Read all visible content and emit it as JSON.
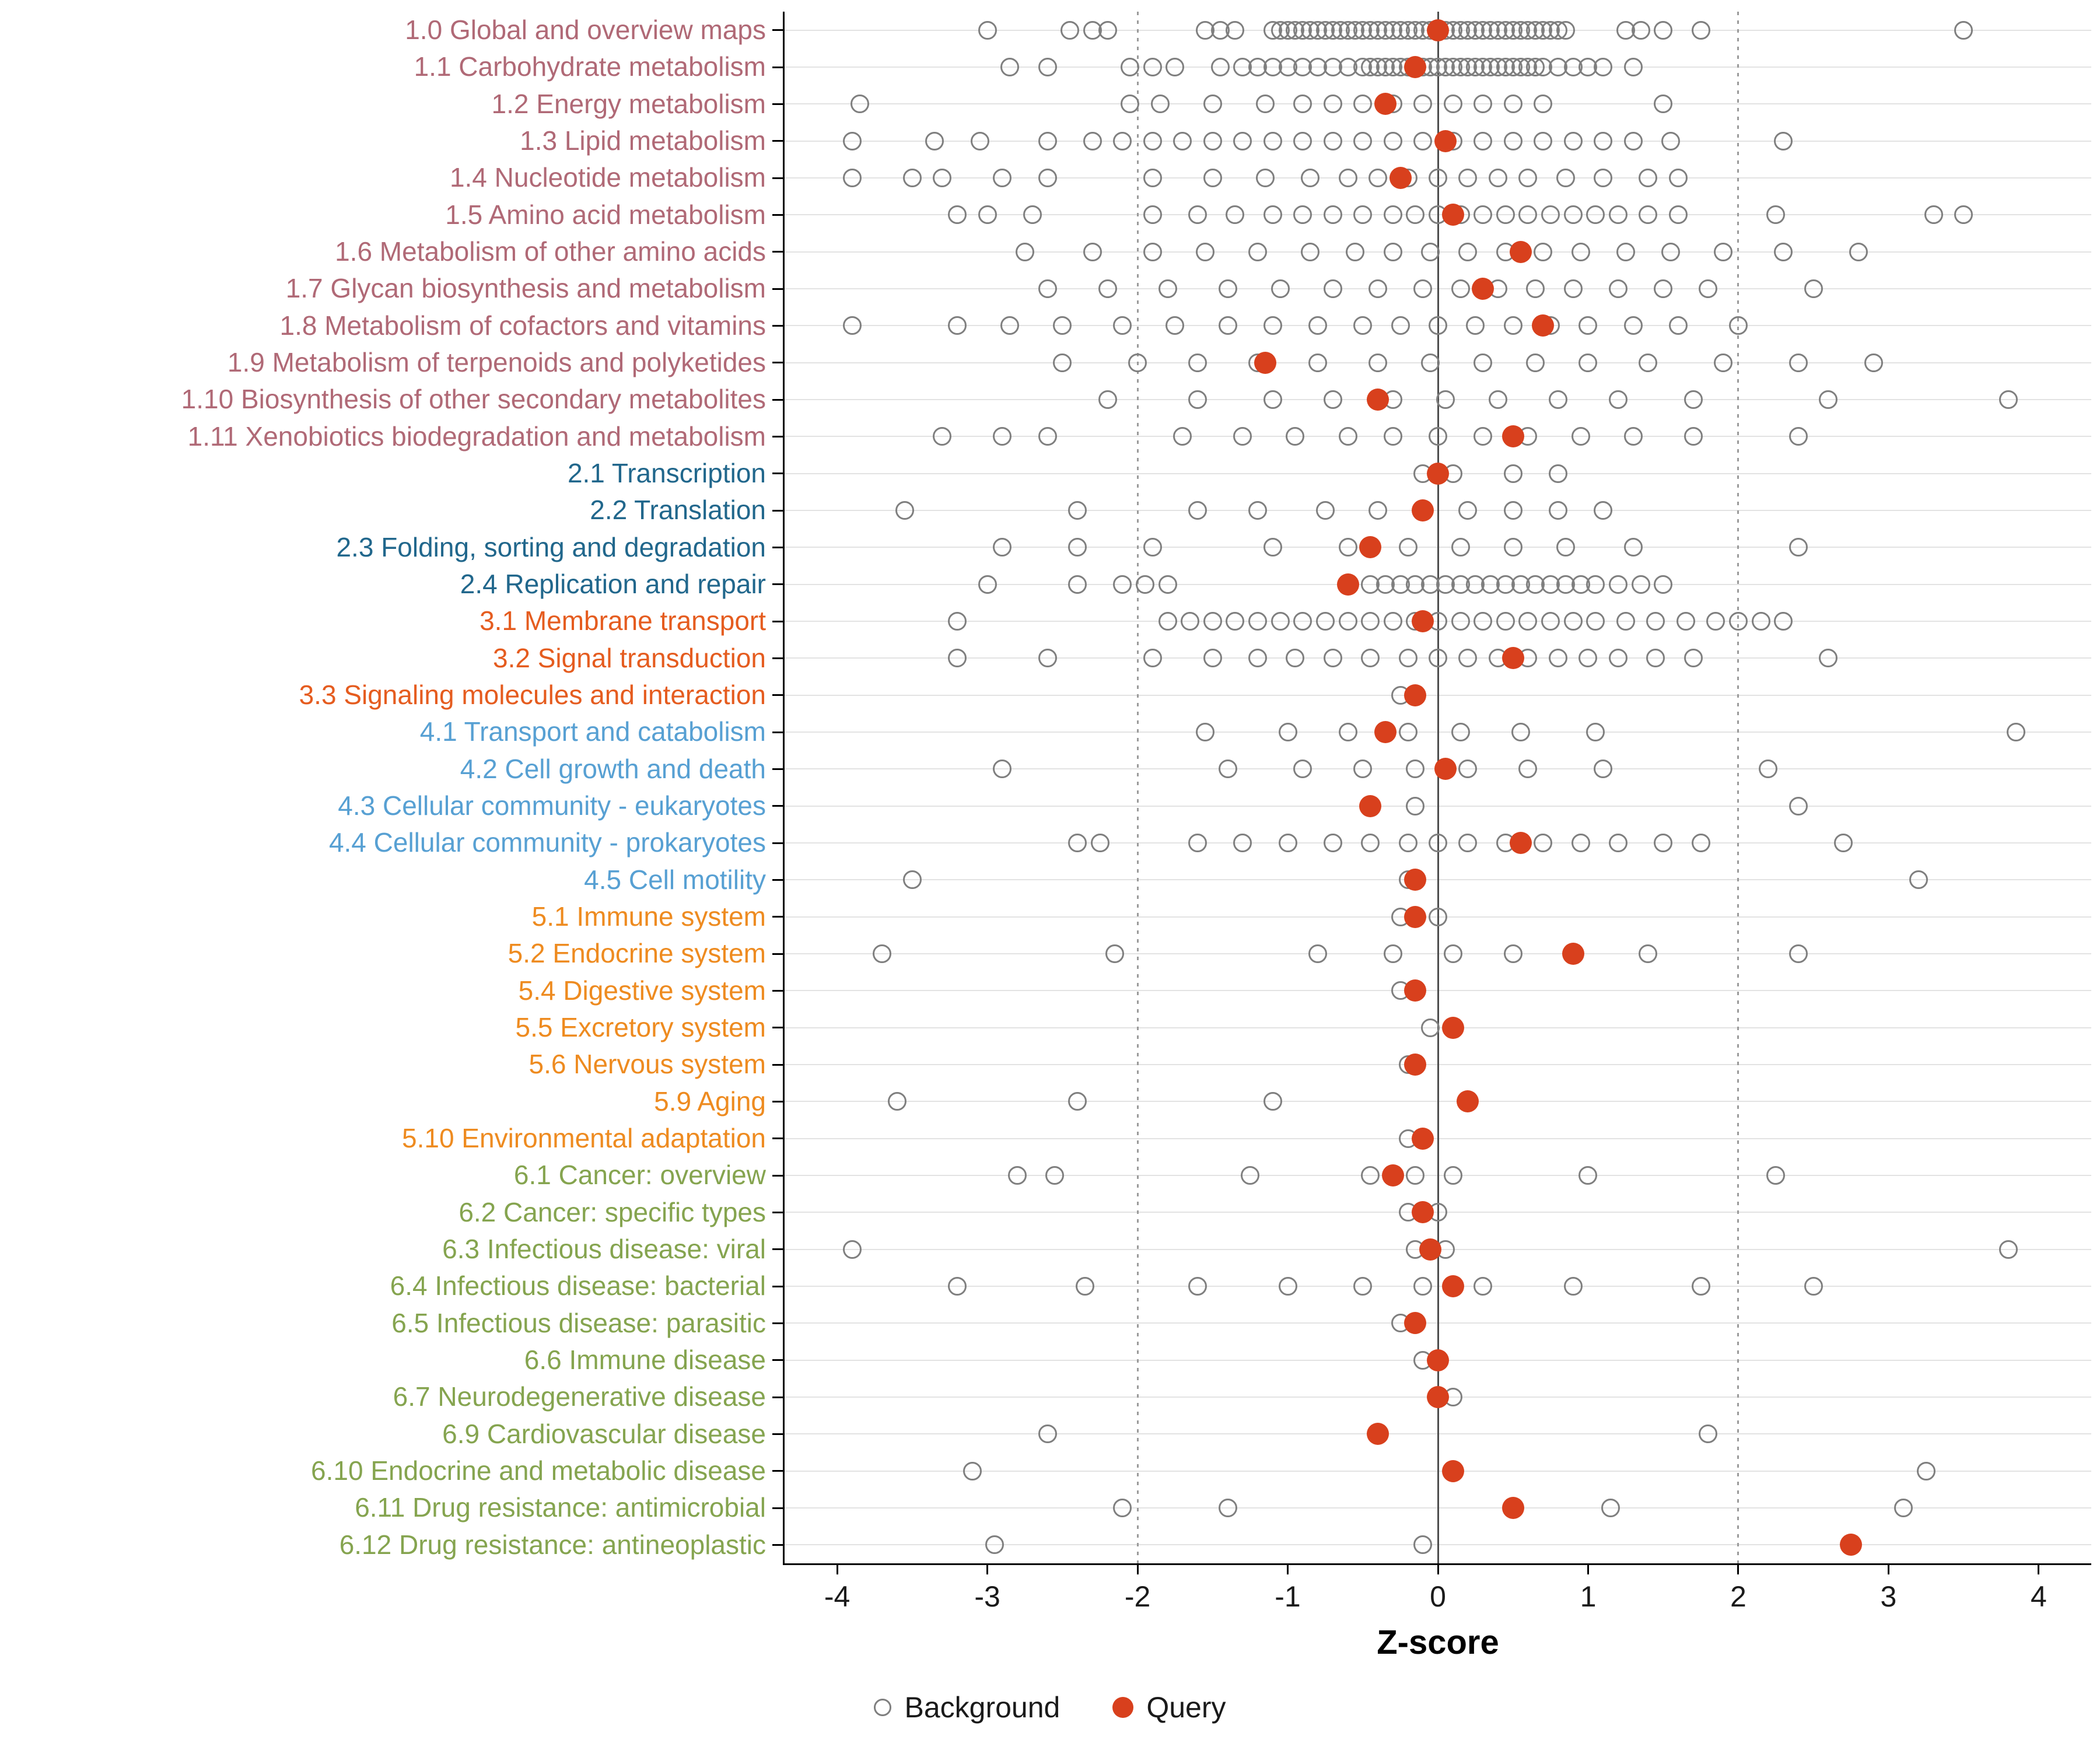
{
  "chart_data": {
    "type": "scatter",
    "title": "",
    "xlabel": "Z-score",
    "xlim": [
      -4.35,
      4.35
    ],
    "x_ticks": [
      -4,
      -3,
      -2,
      -1,
      0,
      1,
      2,
      3,
      4
    ],
    "reference_lines": {
      "solid": [
        0
      ],
      "dotted": [
        -2,
        2
      ]
    },
    "grid": "horizontal-major",
    "legend_position": "bottom",
    "legend": [
      {
        "label": "Background",
        "type": "open"
      },
      {
        "label": "Query",
        "type": "filled"
      }
    ],
    "colors": {
      "background_dot": "#7f7f7f",
      "query_dot": "#d8401d",
      "zero_line": "#4d4d4d",
      "threshold_line": "#9b9b9b",
      "gridline": "#e3e3e3",
      "group_colors": {
        "1": "#b06976",
        "2": "#21678c",
        "3": "#e55c1f",
        "4": "#57a0d3",
        "5": "#ee8b20",
        "6": "#85a44f"
      }
    },
    "categories": [
      {
        "label": "1.0 Global and overview maps",
        "group": "1",
        "query": 0.0,
        "background": [
          -3.0,
          -2.45,
          -2.3,
          -2.2,
          -1.55,
          -1.45,
          -1.35,
          -1.1,
          -1.05,
          -1.0,
          -0.95,
          -0.9,
          -0.85,
          -0.8,
          -0.75,
          -0.7,
          -0.65,
          -0.6,
          -0.55,
          -0.5,
          -0.45,
          -0.4,
          -0.35,
          -0.3,
          -0.25,
          -0.2,
          -0.15,
          -0.1,
          -0.05,
          0.0,
          0.05,
          0.1,
          0.15,
          0.2,
          0.25,
          0.3,
          0.35,
          0.4,
          0.45,
          0.5,
          0.55,
          0.6,
          0.65,
          0.7,
          0.75,
          0.8,
          0.85,
          1.25,
          1.35,
          1.5,
          1.75,
          3.5
        ]
      },
      {
        "label": "1.1 Carbohydrate metabolism",
        "group": "1",
        "query": -0.15,
        "background": [
          -2.85,
          -2.6,
          -2.05,
          -1.9,
          -1.75,
          -1.45,
          -1.3,
          -1.2,
          -1.1,
          -1.0,
          -0.9,
          -0.8,
          -0.7,
          -0.6,
          -0.5,
          -0.45,
          -0.4,
          -0.35,
          -0.3,
          -0.25,
          -0.2,
          -0.15,
          -0.1,
          -0.05,
          0.0,
          0.05,
          0.1,
          0.15,
          0.2,
          0.25,
          0.3,
          0.35,
          0.4,
          0.45,
          0.5,
          0.55,
          0.6,
          0.65,
          0.7,
          0.8,
          0.9,
          1.0,
          1.1,
          1.3
        ]
      },
      {
        "label": "1.2 Energy metabolism",
        "group": "1",
        "query": -0.35,
        "background": [
          -3.85,
          -2.05,
          -1.85,
          -1.5,
          -1.15,
          -0.9,
          -0.7,
          -0.5,
          -0.3,
          -0.1,
          0.1,
          0.3,
          0.5,
          0.7,
          1.5
        ]
      },
      {
        "label": "1.3 Lipid metabolism",
        "group": "1",
        "query": 0.05,
        "background": [
          -3.9,
          -3.35,
          -3.05,
          -2.6,
          -2.3,
          -2.1,
          -1.9,
          -1.7,
          -1.5,
          -1.3,
          -1.1,
          -0.9,
          -0.7,
          -0.5,
          -0.3,
          -0.1,
          0.1,
          0.3,
          0.5,
          0.7,
          0.9,
          1.1,
          1.3,
          1.55,
          2.3
        ]
      },
      {
        "label": "1.4 Nucleotide metabolism",
        "group": "1",
        "query": -0.25,
        "background": [
          -3.9,
          -3.5,
          -3.3,
          -2.9,
          -2.6,
          -1.9,
          -1.5,
          -1.15,
          -0.85,
          -0.6,
          -0.4,
          -0.2,
          0.0,
          0.2,
          0.4,
          0.6,
          0.85,
          1.1,
          1.4,
          1.6
        ]
      },
      {
        "label": "1.5 Amino acid metabolism",
        "group": "1",
        "query": 0.1,
        "background": [
          -3.2,
          -3.0,
          -2.7,
          -1.9,
          -1.6,
          -1.35,
          -1.1,
          -0.9,
          -0.7,
          -0.5,
          -0.3,
          -0.15,
          0.0,
          0.15,
          0.3,
          0.45,
          0.6,
          0.75,
          0.9,
          1.05,
          1.2,
          1.4,
          1.6,
          2.25,
          3.3,
          3.5
        ]
      },
      {
        "label": "1.6 Metabolism of other amino acids",
        "group": "1",
        "query": 0.55,
        "background": [
          -2.75,
          -2.3,
          -1.9,
          -1.55,
          -1.2,
          -0.85,
          -0.55,
          -0.3,
          -0.05,
          0.2,
          0.45,
          0.7,
          0.95,
          1.25,
          1.55,
          1.9,
          2.3,
          2.8
        ]
      },
      {
        "label": "1.7 Glycan biosynthesis and metabolism",
        "group": "1",
        "query": 0.3,
        "background": [
          -2.6,
          -2.2,
          -1.8,
          -1.4,
          -1.05,
          -0.7,
          -0.4,
          -0.1,
          0.15,
          0.4,
          0.65,
          0.9,
          1.2,
          1.5,
          1.8,
          2.5
        ]
      },
      {
        "label": "1.8 Metabolism of cofactors and vitamins",
        "group": "1",
        "query": 0.7,
        "background": [
          -3.9,
          -3.2,
          -2.85,
          -2.5,
          -2.1,
          -1.75,
          -1.4,
          -1.1,
          -0.8,
          -0.5,
          -0.25,
          0.0,
          0.25,
          0.5,
          0.75,
          1.0,
          1.3,
          1.6,
          2.0
        ]
      },
      {
        "label": "1.9 Metabolism of terpenoids and polyketides",
        "group": "1",
        "query": -1.15,
        "background": [
          -2.5,
          -2.0,
          -1.6,
          -1.2,
          -0.8,
          -0.4,
          -0.05,
          0.3,
          0.65,
          1.0,
          1.4,
          1.9,
          2.4,
          2.9
        ]
      },
      {
        "label": "1.10 Biosynthesis of other secondary metabolites",
        "group": "1",
        "query": -0.4,
        "background": [
          -2.2,
          -1.6,
          -1.1,
          -0.7,
          -0.3,
          0.05,
          0.4,
          0.8,
          1.2,
          1.7,
          2.6,
          3.8
        ]
      },
      {
        "label": "1.11 Xenobiotics biodegradation and metabolism",
        "group": "1",
        "query": 0.5,
        "background": [
          -3.3,
          -2.9,
          -2.6,
          -1.7,
          -1.3,
          -0.95,
          -0.6,
          -0.3,
          0.0,
          0.3,
          0.6,
          0.95,
          1.3,
          1.7,
          2.4
        ]
      },
      {
        "label": "2.1 Transcription",
        "group": "2",
        "query": 0.0,
        "background": [
          -0.1,
          0.1,
          0.5,
          0.8
        ]
      },
      {
        "label": "2.2 Translation",
        "group": "2",
        "query": -0.1,
        "background": [
          -3.55,
          -2.4,
          -1.6,
          -1.2,
          -0.75,
          -0.4,
          -0.1,
          0.2,
          0.5,
          0.8,
          1.1
        ]
      },
      {
        "label": "2.3 Folding, sorting and degradation",
        "group": "2",
        "query": -0.45,
        "background": [
          -2.9,
          -2.4,
          -1.9,
          -1.1,
          -0.6,
          -0.2,
          0.15,
          0.5,
          0.85,
          1.3,
          2.4
        ]
      },
      {
        "label": "2.4 Replication and repair",
        "group": "2",
        "query": -0.6,
        "background": [
          -3.0,
          -2.4,
          -2.1,
          -1.95,
          -1.8,
          -0.45,
          -0.35,
          -0.25,
          -0.15,
          -0.05,
          0.05,
          0.15,
          0.25,
          0.35,
          0.45,
          0.55,
          0.65,
          0.75,
          0.85,
          0.95,
          1.05,
          1.2,
          1.35,
          1.5
        ]
      },
      {
        "label": "3.1 Membrane transport",
        "group": "3",
        "query": -0.1,
        "background": [
          -3.2,
          -1.8,
          -1.65,
          -1.5,
          -1.35,
          -1.2,
          -1.05,
          -0.9,
          -0.75,
          -0.6,
          -0.45,
          -0.3,
          -0.15,
          0.0,
          0.15,
          0.3,
          0.45,
          0.6,
          0.75,
          0.9,
          1.05,
          1.25,
          1.45,
          1.65,
          1.85,
          2.0,
          2.15,
          2.3
        ]
      },
      {
        "label": "3.2 Signal transduction",
        "group": "3",
        "query": 0.5,
        "background": [
          -3.2,
          -2.6,
          -1.9,
          -1.5,
          -1.2,
          -0.95,
          -0.7,
          -0.45,
          -0.2,
          0.0,
          0.2,
          0.4,
          0.6,
          0.8,
          1.0,
          1.2,
          1.45,
          1.7,
          2.6
        ]
      },
      {
        "label": "3.3 Signaling molecules and interaction",
        "group": "3",
        "query": -0.15,
        "background": [
          -0.25
        ]
      },
      {
        "label": "4.1 Transport and catabolism",
        "group": "4",
        "query": -0.35,
        "background": [
          -1.55,
          -1.0,
          -0.6,
          -0.2,
          0.15,
          0.55,
          1.05,
          3.85
        ]
      },
      {
        "label": "4.2 Cell growth and death",
        "group": "4",
        "query": 0.05,
        "background": [
          -2.9,
          -1.4,
          -0.9,
          -0.5,
          -0.15,
          0.2,
          0.6,
          1.1,
          2.2
        ]
      },
      {
        "label": "4.3 Cellular community - eukaryotes",
        "group": "4",
        "query": -0.45,
        "background": [
          -0.15,
          2.4
        ]
      },
      {
        "label": "4.4 Cellular community - prokaryotes",
        "group": "4",
        "query": 0.55,
        "background": [
          -2.4,
          -2.25,
          -1.6,
          -1.3,
          -1.0,
          -0.7,
          -0.45,
          -0.2,
          0.0,
          0.2,
          0.45,
          0.7,
          0.95,
          1.2,
          1.5,
          1.75,
          2.7
        ]
      },
      {
        "label": "4.5 Cell motility",
        "group": "4",
        "query": -0.15,
        "background": [
          -3.5,
          -0.2,
          3.2
        ]
      },
      {
        "label": "5.1 Immune system",
        "group": "5",
        "query": -0.15,
        "background": [
          -0.25,
          0.0
        ]
      },
      {
        "label": "5.2 Endocrine system",
        "group": "5",
        "query": 0.9,
        "background": [
          -3.7,
          -2.15,
          -0.8,
          -0.3,
          0.1,
          0.5,
          1.4,
          2.4
        ]
      },
      {
        "label": "5.4 Digestive system",
        "group": "5",
        "query": -0.15,
        "background": [
          -0.25
        ]
      },
      {
        "label": "5.5 Excretory system",
        "group": "5",
        "query": 0.1,
        "background": [
          -0.05
        ]
      },
      {
        "label": "5.6 Nervous system",
        "group": "5",
        "query": -0.15,
        "background": [
          -0.2
        ]
      },
      {
        "label": "5.9 Aging",
        "group": "5",
        "query": 0.2,
        "background": [
          -3.6,
          -2.4,
          -1.1
        ]
      },
      {
        "label": "5.10 Environmental adaptation",
        "group": "5",
        "query": -0.1,
        "background": [
          -0.2
        ]
      },
      {
        "label": "6.1 Cancer: overview",
        "group": "6",
        "query": -0.3,
        "background": [
          -2.8,
          -2.55,
          -1.25,
          -0.45,
          -0.15,
          0.1,
          1.0,
          2.25
        ]
      },
      {
        "label": "6.2 Cancer: specific types",
        "group": "6",
        "query": -0.1,
        "background": [
          -0.2,
          0.0
        ]
      },
      {
        "label": "6.3 Infectious disease: viral",
        "group": "6",
        "query": -0.05,
        "background": [
          -3.9,
          -0.15,
          0.05,
          3.8
        ]
      },
      {
        "label": "6.4 Infectious disease: bacterial",
        "group": "6",
        "query": 0.1,
        "background": [
          -3.2,
          -2.35,
          -1.6,
          -1.0,
          -0.5,
          -0.1,
          0.3,
          0.9,
          1.75,
          2.5
        ]
      },
      {
        "label": "6.5 Infectious disease: parasitic",
        "group": "6",
        "query": -0.15,
        "background": [
          -0.25
        ]
      },
      {
        "label": "6.6 Immune disease",
        "group": "6",
        "query": 0.0,
        "background": [
          -0.1
        ]
      },
      {
        "label": "6.7 Neurodegenerative disease",
        "group": "6",
        "query": 0.0,
        "background": [
          0.1
        ]
      },
      {
        "label": "6.9 Cardiovascular disease",
        "group": "6",
        "query": -0.4,
        "background": [
          -2.6,
          1.8
        ]
      },
      {
        "label": "6.10 Endocrine and metabolic disease",
        "group": "6",
        "query": 0.1,
        "background": [
          -3.1,
          3.25
        ]
      },
      {
        "label": "6.11 Drug resistance: antimicrobial",
        "group": "6",
        "query": 0.5,
        "background": [
          -2.1,
          -1.4,
          1.15,
          3.1
        ]
      },
      {
        "label": "6.12 Drug resistance: antineoplastic",
        "group": "6",
        "query": 2.75,
        "background": [
          -2.95,
          -0.1
        ]
      }
    ]
  }
}
